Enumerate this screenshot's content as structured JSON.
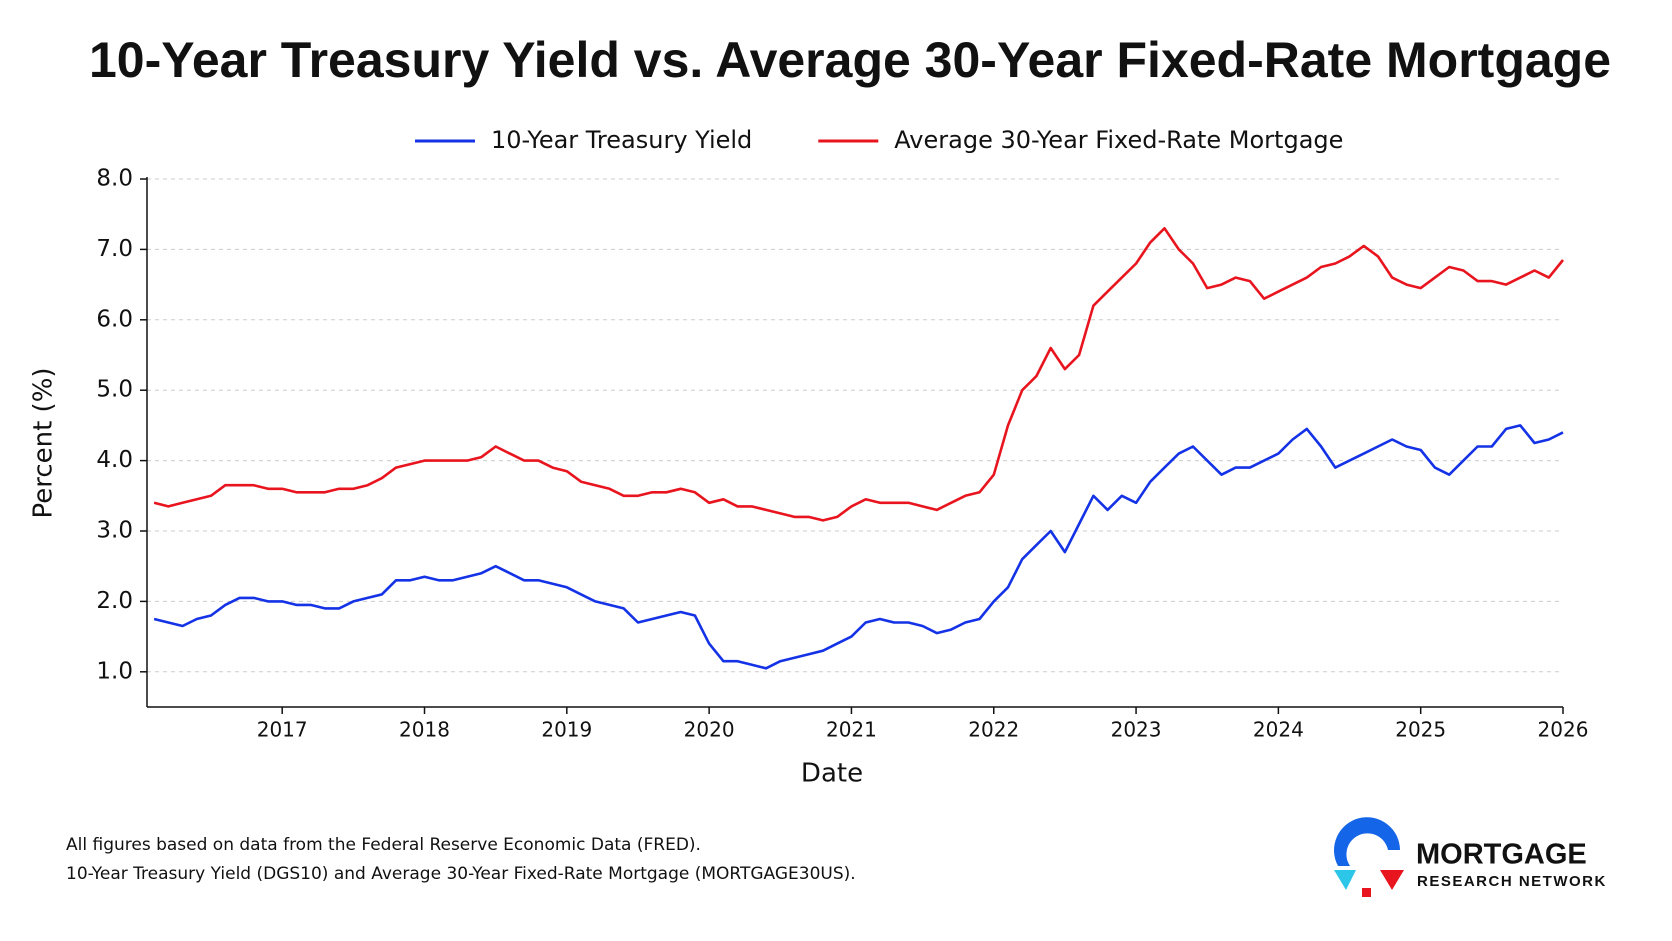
{
  "chart_data": {
    "type": "line",
    "title": "10-Year Treasury Yield vs. Average 30-Year Fixed-Rate Mortgage",
    "x_label": "Date",
    "y_label": "Percent (%)",
    "x": [
      2016.1,
      2016.2,
      2016.3,
      2016.4,
      2016.5,
      2016.6,
      2016.7,
      2016.8,
      2016.9,
      2017.0,
      2017.1,
      2017.2,
      2017.3,
      2017.4,
      2017.5,
      2017.6,
      2017.7,
      2017.8,
      2017.9,
      2018.0,
      2018.1,
      2018.2,
      2018.3,
      2018.4,
      2018.5,
      2018.6,
      2018.7,
      2018.8,
      2018.9,
      2019.0,
      2019.1,
      2019.2,
      2019.3,
      2019.4,
      2019.5,
      2019.6,
      2019.7,
      2019.8,
      2019.9,
      2020.0,
      2020.1,
      2020.2,
      2020.3,
      2020.4,
      2020.5,
      2020.6,
      2020.7,
      2020.8,
      2020.9,
      2021.0,
      2021.1,
      2021.2,
      2021.3,
      2021.4,
      2021.5,
      2021.6,
      2021.7,
      2021.8,
      2021.9,
      2022.0,
      2022.1,
      2022.2,
      2022.3,
      2022.4,
      2022.5,
      2022.6,
      2022.7,
      2022.8,
      2022.9,
      2023.0,
      2023.1,
      2023.2,
      2023.3,
      2023.4,
      2023.5,
      2023.6,
      2023.7,
      2023.8,
      2023.9,
      2024.0,
      2024.1,
      2024.2,
      2024.3,
      2024.4,
      2024.5,
      2024.6,
      2024.7,
      2024.8,
      2024.9,
      2025.0,
      2025.1,
      2025.2,
      2025.3,
      2025.4,
      2025.5,
      2025.6,
      2025.7,
      2025.8,
      2025.9,
      2026.0
    ],
    "series": [
      {
        "name": "10-Year Treasury Yield",
        "color": "#1432e6",
        "values": [
          1.75,
          1.7,
          1.65,
          1.75,
          1.8,
          1.95,
          2.05,
          2.05,
          2.0,
          2.0,
          1.95,
          1.95,
          1.9,
          1.9,
          2.0,
          2.05,
          2.1,
          2.3,
          2.3,
          2.35,
          2.3,
          2.3,
          2.35,
          2.4,
          2.5,
          2.4,
          2.3,
          2.3,
          2.25,
          2.2,
          2.1,
          2.0,
          1.95,
          1.9,
          1.7,
          1.75,
          1.8,
          1.85,
          1.8,
          1.4,
          1.15,
          1.15,
          1.1,
          1.05,
          1.15,
          1.2,
          1.25,
          1.3,
          1.4,
          1.5,
          1.7,
          1.75,
          1.7,
          1.7,
          1.65,
          1.55,
          1.6,
          1.7,
          1.75,
          2.0,
          2.2,
          2.6,
          2.8,
          3.0,
          2.7,
          3.1,
          3.5,
          3.3,
          3.5,
          3.4,
          3.7,
          3.9,
          4.1,
          4.2,
          4.0,
          3.8,
          3.9,
          3.9,
          4.0,
          4.1,
          4.3,
          4.45,
          4.2,
          3.9,
          4.0,
          4.1,
          4.2,
          4.3,
          4.2,
          4.15,
          3.9,
          3.8,
          4.0,
          4.2,
          4.2,
          4.45,
          4.5,
          4.25,
          4.3,
          4.4
        ]
      },
      {
        "name": "Average 30-Year Fixed-Rate Mortgage",
        "color": "#e8141e",
        "values": [
          3.4,
          3.35,
          3.4,
          3.45,
          3.5,
          3.65,
          3.65,
          3.65,
          3.6,
          3.6,
          3.55,
          3.55,
          3.55,
          3.6,
          3.6,
          3.65,
          3.75,
          3.9,
          3.95,
          4.0,
          4.0,
          4.0,
          4.0,
          4.05,
          4.2,
          4.1,
          4.0,
          4.0,
          3.9,
          3.85,
          3.7,
          3.65,
          3.6,
          3.5,
          3.5,
          3.55,
          3.55,
          3.6,
          3.55,
          3.4,
          3.45,
          3.35,
          3.35,
          3.3,
          3.25,
          3.2,
          3.2,
          3.15,
          3.2,
          3.35,
          3.45,
          3.4,
          3.4,
          3.4,
          3.35,
          3.3,
          3.4,
          3.5,
          3.55,
          3.8,
          4.5,
          5.0,
          5.2,
          5.6,
          5.3,
          5.5,
          6.2,
          6.4,
          6.6,
          6.8,
          7.1,
          7.3,
          7.0,
          6.8,
          6.45,
          6.5,
          6.6,
          6.55,
          6.3,
          6.4,
          6.5,
          6.6,
          6.75,
          6.8,
          6.9,
          7.05,
          6.9,
          6.6,
          6.5,
          6.45,
          6.6,
          6.75,
          6.7,
          6.55,
          6.55,
          6.5,
          6.6,
          6.7,
          6.6,
          6.85
        ]
      }
    ],
    "xlim": [
      2016.05,
      2026
    ],
    "xticks": [
      2017,
      2018,
      2019,
      2020,
      2021,
      2022,
      2023,
      2024,
      2025,
      2026
    ],
    "ylim": [
      0.5,
      8
    ],
    "yticks": [
      {
        "value": 1,
        "label": "1.0"
      },
      {
        "value": 2,
        "label": "2.0"
      },
      {
        "value": 3,
        "label": "3.0"
      },
      {
        "value": 4,
        "label": "4.0"
      },
      {
        "value": 5,
        "label": "5.0"
      },
      {
        "value": 6,
        "label": "6.0"
      },
      {
        "value": 7,
        "label": "7.0"
      },
      {
        "value": 8,
        "label": "8.0"
      }
    ],
    "grid": true,
    "legend": "top"
  },
  "footnotes": [
    "All figures based on data from the Federal Reserve Economic Data (FRED).",
    "10-Year Treasury Yield (DGS10) and Average 30-Year Fixed-Rate Mortgage (MORTGAGE30US)."
  ],
  "logo": {
    "line1": "MORTGAGE",
    "line2": "RESEARCH NETWORK"
  }
}
